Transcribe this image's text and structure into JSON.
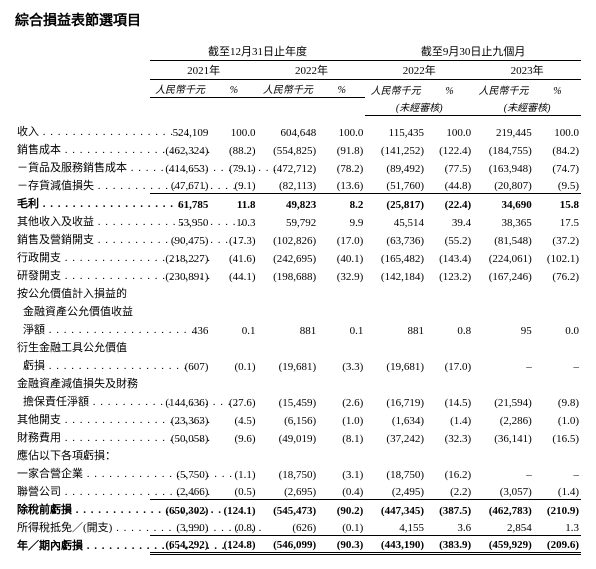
{
  "title": "綜合損益表節選項目",
  "period_headers": [
    "截至12月31日止年度",
    "截至9月30日止九個月"
  ],
  "year_headers": [
    "2021年",
    "2022年",
    "2022年",
    "2023年"
  ],
  "unit_headers": [
    "人民幣千元",
    "%",
    "人民幣千元",
    "%",
    "人民幣千元",
    "%",
    "人民幣千元",
    "%"
  ],
  "unaudited": "(未經審核)",
  "rows": [
    {
      "label": "收入",
      "indent": false,
      "v": [
        "524,109",
        "100.0",
        "604,648",
        "100.0",
        "115,435",
        "100.0",
        "219,445",
        "100.0"
      ],
      "bold": false
    },
    {
      "label": "銷售成本",
      "indent": false,
      "v": [
        "(462,324)",
        "(88.2)",
        "(554,825)",
        "(91.8)",
        "(141,252)",
        "(122.4)",
        "(184,755)",
        "(84.2)"
      ],
      "bold": false
    },
    {
      "label": "－貨品及服務銷售成本",
      "indent": false,
      "v": [
        "(414,653)",
        "(79.1)",
        "(472,712)",
        "(78.2)",
        "(89,492)",
        "(77.5)",
        "(163,948)",
        "(74.7)"
      ],
      "bold": false
    },
    {
      "label": "－存貨減值損失",
      "indent": false,
      "v": [
        "(47,671)",
        "(9.1)",
        "(82,113)",
        "(13.6)",
        "(51,760)",
        "(44.8)",
        "(20,807)",
        "(9.5)"
      ],
      "bold": false,
      "under": true
    },
    {
      "label": "毛利",
      "indent": false,
      "v": [
        "61,785",
        "11.8",
        "49,823",
        "8.2",
        "(25,817)",
        "(22.4)",
        "34,690",
        "15.8"
      ],
      "bold": true
    },
    {
      "label": "其他收入及收益",
      "indent": false,
      "v": [
        "53,950",
        "10.3",
        "59,792",
        "9.9",
        "45,514",
        "39.4",
        "38,365",
        "17.5"
      ],
      "bold": false
    },
    {
      "label": "銷售及營銷開支",
      "indent": false,
      "v": [
        "(90,475)",
        "(17.3)",
        "(102,826)",
        "(17.0)",
        "(63,736)",
        "(55.2)",
        "(81,548)",
        "(37.2)"
      ],
      "bold": false
    },
    {
      "label": "行政開支",
      "indent": false,
      "v": [
        "(218,227)",
        "(41.6)",
        "(242,695)",
        "(40.1)",
        "(165,482)",
        "(143.4)",
        "(224,061)",
        "(102.1)"
      ],
      "bold": false
    },
    {
      "label": "研發開支",
      "indent": false,
      "v": [
        "(230,891)",
        "(44.1)",
        "(198,688)",
        "(32.9)",
        "(142,184)",
        "(123.2)",
        "(167,246)",
        "(76.2)"
      ],
      "bold": false
    },
    {
      "label": "按公允價值計入損益的",
      "indent": false,
      "plain": true
    },
    {
      "label": "金融資產公允價值收益",
      "indent": true,
      "plain": true
    },
    {
      "label": "淨額",
      "indent": true,
      "v": [
        "436",
        "0.1",
        "881",
        "0.1",
        "881",
        "0.8",
        "95",
        "0.0"
      ],
      "bold": false
    },
    {
      "label": "衍生金融工具公允價值",
      "indent": false,
      "plain": true
    },
    {
      "label": "虧損",
      "indent": true,
      "v": [
        "(607)",
        "(0.1)",
        "(19,681)",
        "(3.3)",
        "(19,681)",
        "(17.0)",
        "–",
        "–"
      ],
      "bold": false
    },
    {
      "label": "金融資產減值損失及財務",
      "indent": false,
      "plain": true
    },
    {
      "label": "擔保責任淨額",
      "indent": true,
      "v": [
        "(144,636)",
        "(27.6)",
        "(15,459)",
        "(2.6)",
        "(16,719)",
        "(14.5)",
        "(21,594)",
        "(9.8)"
      ],
      "bold": false
    },
    {
      "label": "其他開支",
      "indent": false,
      "v": [
        "(23,363)",
        "(4.5)",
        "(6,156)",
        "(1.0)",
        "(1,634)",
        "(1.4)",
        "(2,286)",
        "(1.0)"
      ],
      "bold": false
    },
    {
      "label": "財務費用",
      "indent": false,
      "v": [
        "(50,058)",
        "(9.6)",
        "(49,019)",
        "(8.1)",
        "(37,242)",
        "(32.3)",
        "(36,141)",
        "(16.5)"
      ],
      "bold": false
    },
    {
      "label": "應佔以下各項虧損：",
      "indent": false,
      "plain": true,
      "nodots": true
    },
    {
      "label": "一家合營企業",
      "indent": false,
      "v": [
        "(5,750)",
        "(1.1)",
        "(18,750)",
        "(3.1)",
        "(18,750)",
        "(16.2)",
        "–",
        "–"
      ],
      "bold": false
    },
    {
      "label": "聯營公司",
      "indent": false,
      "v": [
        "(2,466)",
        "(0.5)",
        "(2,695)",
        "(0.4)",
        "(2,495)",
        "(2.2)",
        "(3,057)",
        "(1.4)"
      ],
      "bold": false,
      "under": true
    },
    {
      "label": "除稅前虧損",
      "indent": false,
      "v": [
        "(650,302)",
        "(124.1)",
        "(545,473)",
        "(90.2)",
        "(447,345)",
        "(387.5)",
        "(462,783)",
        "(210.9)"
      ],
      "bold": true
    },
    {
      "label": "所得稅抵免／(開支)",
      "indent": false,
      "v": [
        "(3,990)",
        "(0.8)",
        "(626)",
        "(0.1)",
        "4,155",
        "3.6",
        "2,854",
        "1.3"
      ],
      "bold": false,
      "under": true
    },
    {
      "label": "年／期內虧損",
      "indent": false,
      "v": [
        "(654,292)",
        "(124.8)",
        "(546,099)",
        "(90.3)",
        "(443,190)",
        "(383.9)",
        "(459,929)",
        "(209.6)"
      ],
      "bold": true,
      "dbl": true
    }
  ]
}
